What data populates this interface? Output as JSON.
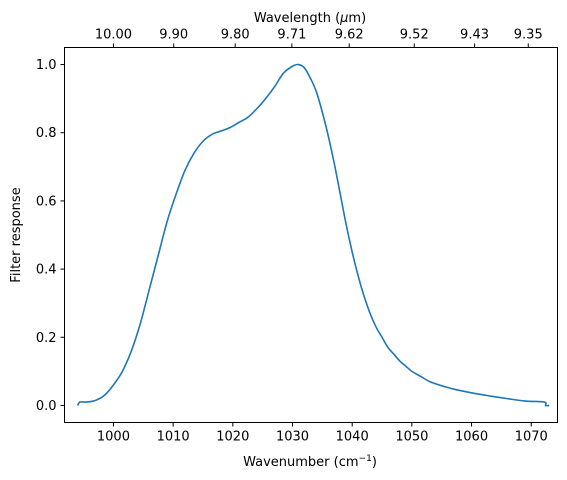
{
  "chart_data": {
    "type": "line",
    "xlabel": "Wavenumber (cm",
    "xlabel_sup": "−1",
    "xlabel_suffix": ")",
    "ylabel": "Filter response",
    "top_xlabel": "Wavelength (",
    "top_xlabel_mu": "μ",
    "top_xlabel_suffix": "m)",
    "xlim": [
      991.8,
      1074.4
    ],
    "ylim": [
      -0.05,
      1.05
    ],
    "grid": false,
    "line_color": "#1f77b4",
    "x_ticks": [
      {
        "value": 1000,
        "label": "1000"
      },
      {
        "value": 1010,
        "label": "1010"
      },
      {
        "value": 1020,
        "label": "1020"
      },
      {
        "value": 1030,
        "label": "1030"
      },
      {
        "value": 1040,
        "label": "1040"
      },
      {
        "value": 1050,
        "label": "1050"
      },
      {
        "value": 1060,
        "label": "1060"
      },
      {
        "value": 1070,
        "label": "1070"
      }
    ],
    "y_ticks": [
      {
        "value": 0.0,
        "label": "0.0"
      },
      {
        "value": 0.2,
        "label": "0.2"
      },
      {
        "value": 0.4,
        "label": "0.4"
      },
      {
        "value": 0.6,
        "label": "0.6"
      },
      {
        "value": 0.8,
        "label": "0.8"
      },
      {
        "value": 1.0,
        "label": "1.0"
      }
    ],
    "top_ticks": [
      {
        "value": 1000.0,
        "label": "10.00"
      },
      {
        "value": 1010.1,
        "label": "9.90"
      },
      {
        "value": 1020.4,
        "label": "9.80"
      },
      {
        "value": 1029.9,
        "label": "9.71"
      },
      {
        "value": 1039.5,
        "label": "9.62"
      },
      {
        "value": 1050.4,
        "label": "9.52"
      },
      {
        "value": 1060.5,
        "label": "9.43"
      },
      {
        "value": 1069.5,
        "label": "9.35"
      }
    ],
    "series": [
      {
        "x": [
          994.0,
          994.4,
          995.5,
          997.0,
          998.5,
          1000.0,
          1001.5,
          1003.0,
          1004.5,
          1006.0,
          1007.5,
          1009.0,
          1010.5,
          1012.0,
          1013.5,
          1015.0,
          1016.5,
          1018.0,
          1019.5,
          1021.0,
          1022.5,
          1024.0,
          1025.5,
          1027.0,
          1028.5,
          1030.0,
          1031.0,
          1032.0,
          1033.0,
          1034.0,
          1035.0,
          1036.0,
          1037.0,
          1038.0,
          1039.0,
          1040.0,
          1041.0,
          1042.0,
          1043.0,
          1044.0,
          1045.0,
          1046.0,
          1047.0,
          1048.0,
          1049.0,
          1050.0,
          1051.5,
          1053.0,
          1055.0,
          1057.0,
          1060.0,
          1063.0,
          1066.0,
          1069.0,
          1072.2,
          1072.4,
          1073.0
        ],
        "y": [
          0.0,
          0.01,
          0.01,
          0.015,
          0.03,
          0.06,
          0.1,
          0.16,
          0.24,
          0.34,
          0.44,
          0.54,
          0.62,
          0.69,
          0.74,
          0.775,
          0.795,
          0.805,
          0.815,
          0.83,
          0.845,
          0.87,
          0.9,
          0.935,
          0.975,
          0.995,
          1.0,
          0.99,
          0.96,
          0.92,
          0.86,
          0.79,
          0.71,
          0.62,
          0.53,
          0.45,
          0.38,
          0.32,
          0.27,
          0.23,
          0.2,
          0.17,
          0.15,
          0.13,
          0.115,
          0.1,
          0.085,
          0.07,
          0.058,
          0.048,
          0.037,
          0.028,
          0.02,
          0.013,
          0.01,
          0.0,
          0.0
        ]
      }
    ]
  }
}
